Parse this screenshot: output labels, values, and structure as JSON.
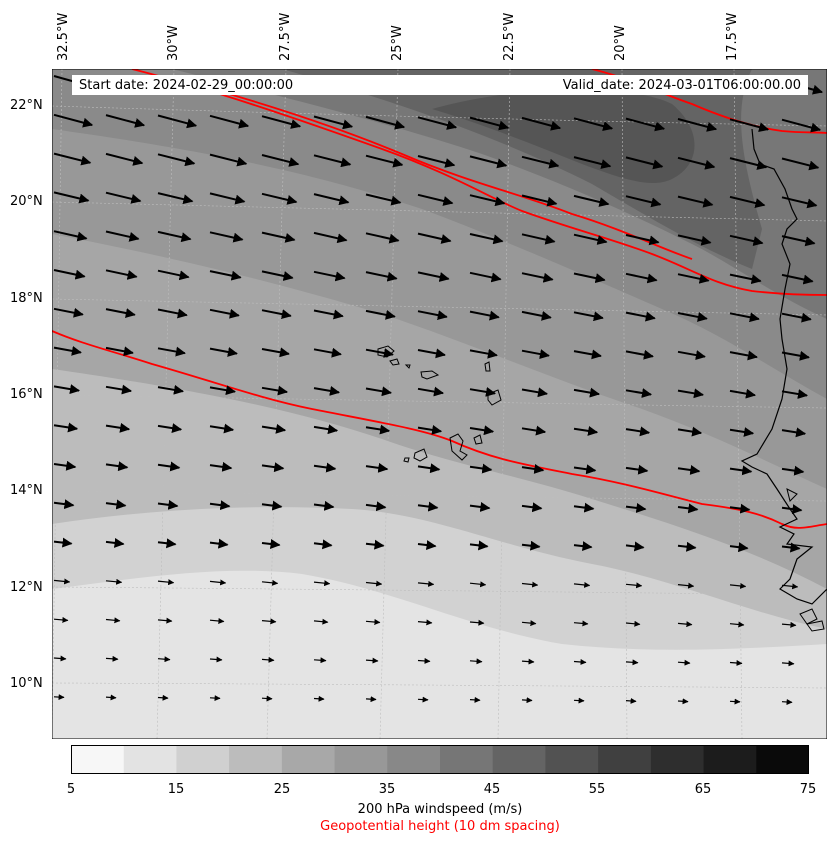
{
  "header": {
    "start_label": "Start date: 2024-02-29_00:00:00",
    "valid_label": "Valid_date: 2024-03-01T06:00:00.00"
  },
  "longitude_labels": [
    "32.5°W",
    "30°W",
    "27.5°W",
    "25°W",
    "22.5°W",
    "20°W",
    "17.5°W"
  ],
  "latitude_labels": [
    "22°N",
    "20°N",
    "18°N",
    "16°N",
    "14°N",
    "12°N",
    "10°N"
  ],
  "colorbar": {
    "ticks": [
      "5",
      "15",
      "25",
      "35",
      "45",
      "55",
      "65",
      "75"
    ],
    "levels": [
      5,
      10,
      15,
      20,
      25,
      30,
      35,
      40,
      45,
      50,
      55,
      60,
      65,
      70,
      75
    ],
    "colors": [
      "#f7f7f7",
      "#e3e3e3",
      "#d0d0d0",
      "#bcbcbc",
      "#a8a8a8",
      "#989898",
      "#888888",
      "#767676",
      "#646464",
      "#525252",
      "#404040",
      "#2e2e2e",
      "#1c1c1c",
      "#0a0a0a"
    ],
    "label": "200 hPa windspeed (m/s)",
    "sublabel": "Geopotential height (10 dm spacing)"
  },
  "colors": {
    "contour": "#ff0000",
    "arrow": "#000000",
    "coast": "#000000"
  }
}
